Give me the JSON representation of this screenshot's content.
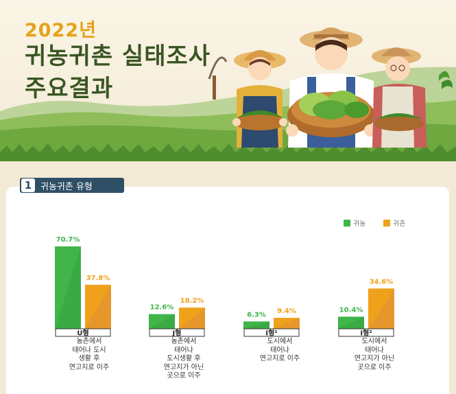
{
  "header": {
    "year": "2022년",
    "title_line1": "귀농귀촌 실태조사",
    "title_line2": "주요결과"
  },
  "section": {
    "number": "1",
    "title": "귀농귀촌 유형"
  },
  "colors": {
    "farming": "#3fb54a",
    "rural": "#f0a11b",
    "navy": "#2f4f66",
    "title_green": "#3a5524",
    "title_orange": "#e4a21c"
  },
  "chart_data": {
    "type": "bar",
    "categories": [
      "U형",
      "J형",
      "I형¹",
      "I형²"
    ],
    "category_descriptions": [
      "농촌에서\n태어나 도시\n생활 후\n연고지로 이주",
      "농촌에서\n태어나\n도시생활 후\n연고지가 아닌\n곳으로 이주",
      "도시에서\n태어나\n연고지로 이주",
      "도시에서\n태어나\n연고지가 아닌\n곳으로 이주"
    ],
    "series": [
      {
        "name": "귀농",
        "values": [
          70.7,
          12.6,
          6.3,
          10.4
        ],
        "labels": [
          "70.7%",
          "12.6%",
          "6.3%",
          "10.4%"
        ]
      },
      {
        "name": "귀촌",
        "values": [
          37.8,
          18.2,
          9.4,
          34.6
        ],
        "labels": [
          "37.8%",
          "18.2%",
          "9.4%",
          "34.6%"
        ]
      }
    ],
    "ylim": [
      0,
      70.7
    ],
    "legend_position": "top-right",
    "grid": false
  }
}
